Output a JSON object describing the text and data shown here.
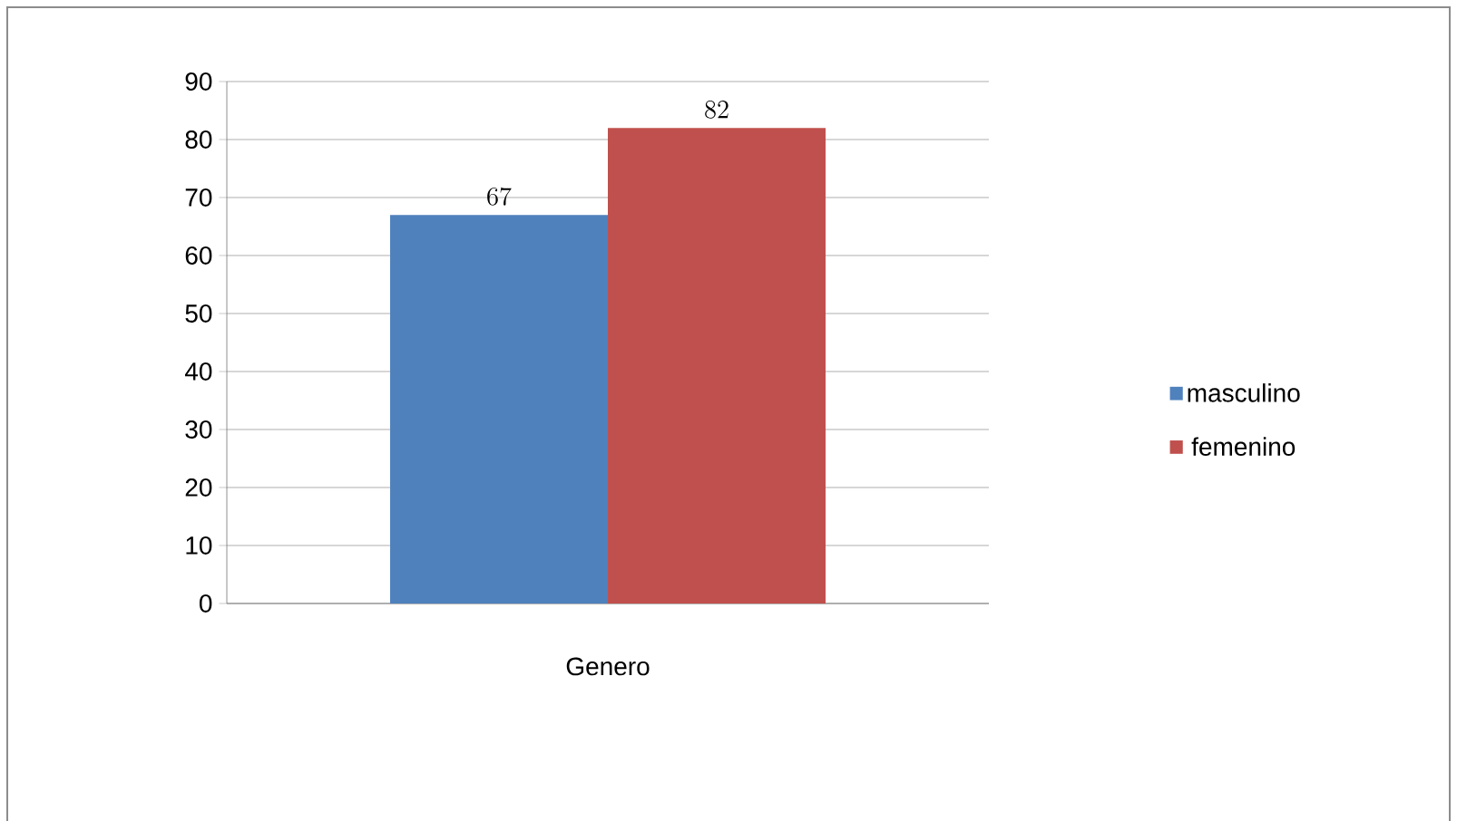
{
  "chart_data": {
    "type": "bar",
    "categories": [
      "Genero"
    ],
    "series": [
      {
        "name": "masculino",
        "color": "#4f81bd",
        "values": [
          67
        ]
      },
      {
        "name": "femenino",
        "color": "#c0504d",
        "values": [
          82
        ]
      }
    ],
    "ylim": [
      0,
      90
    ],
    "yticks": [
      0,
      10,
      20,
      30,
      40,
      50,
      60,
      70,
      80,
      90
    ],
    "grid": "y",
    "legend": "right",
    "data_labels": true
  }
}
